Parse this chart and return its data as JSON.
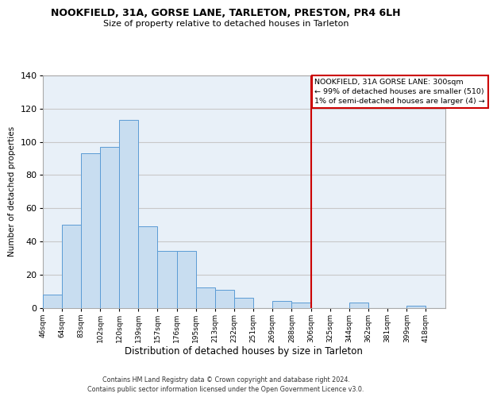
{
  "title": "NOOKFIELD, 31A, GORSE LANE, TARLETON, PRESTON, PR4 6LH",
  "subtitle": "Size of property relative to detached houses in Tarleton",
  "xlabel": "Distribution of detached houses by size in Tarleton",
  "ylabel": "Number of detached properties",
  "bar_values": [
    8,
    50,
    93,
    97,
    113,
    49,
    34,
    34,
    12,
    11,
    6,
    0,
    4,
    3,
    0,
    0,
    3,
    0,
    0,
    1
  ],
  "bar_labels": [
    "46sqm",
    "64sqm",
    "83sqm",
    "102sqm",
    "120sqm",
    "139sqm",
    "157sqm",
    "176sqm",
    "195sqm",
    "213sqm",
    "232sqm",
    "251sqm",
    "269sqm",
    "288sqm",
    "306sqm",
    "325sqm",
    "344sqm",
    "362sqm",
    "381sqm",
    "399sqm",
    "418sqm"
  ],
  "bar_color": "#c8ddf0",
  "bar_edge_color": "#5b9bd5",
  "vline_color": "#cc0000",
  "vline_pos": 14,
  "annotation_line1": "NOOKFIELD, 31A GORSE LANE: 300sqm",
  "annotation_line2": "← 99% of detached houses are smaller (510)",
  "annotation_line3": "1% of semi-detached houses are larger (4) →",
  "annotation_box_edge_color": "#cc0000",
  "ylim": [
    0,
    140
  ],
  "yticks": [
    0,
    20,
    40,
    60,
    80,
    100,
    120,
    140
  ],
  "grid_color": "#c8c8c8",
  "bg_color": "#e8f0f8",
  "footer_line1": "Contains HM Land Registry data © Crown copyright and database right 2024.",
  "footer_line2": "Contains public sector information licensed under the Open Government Licence v3.0."
}
